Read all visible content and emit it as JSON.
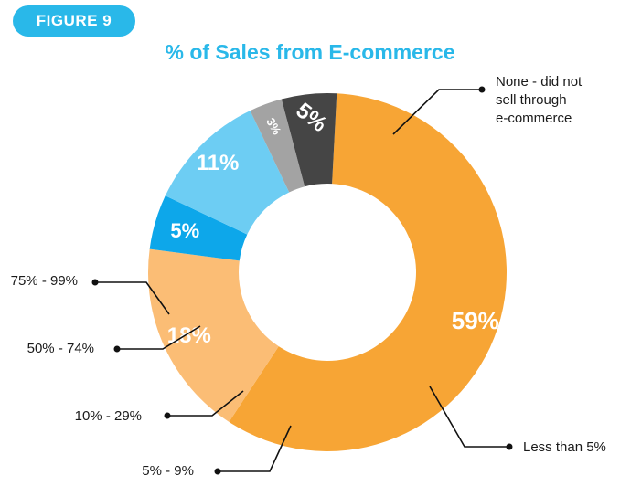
{
  "figure_label": "FIGURE 9",
  "chart_data": {
    "type": "pie",
    "title": "% of Sales from E-commerce",
    "donut": true,
    "slices": [
      {
        "label": "None - did not sell through e-commerce",
        "value": 59,
        "value_label": "59%",
        "color": "#f7a535"
      },
      {
        "label": "Less than 5%",
        "value": 18,
        "value_label": "18%",
        "color": "#fbbd75"
      },
      {
        "label": "5% - 9%",
        "value": 5,
        "value_label": "5%",
        "color": "#0da7ea"
      },
      {
        "label": "10% - 29%",
        "value": 11,
        "value_label": "11%",
        "color": "#6dcdf3"
      },
      {
        "label": "50% - 74%",
        "value": 3,
        "value_label": "3%",
        "color": "#a3a3a3"
      },
      {
        "label": "75% - 99%",
        "value": 5,
        "value_label": "5%",
        "color": "#454545"
      }
    ]
  }
}
